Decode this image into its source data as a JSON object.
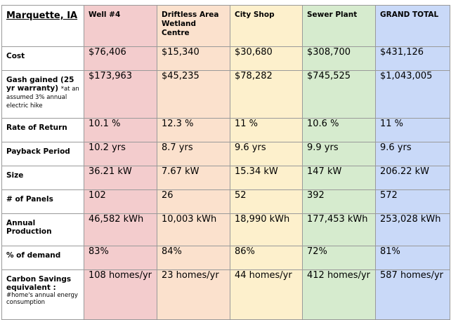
{
  "title": "Marquette, IA",
  "columns": [
    {
      "label": "Well #4",
      "color": "#f3cccd"
    },
    {
      "label": "Driftless Area Wetland Centre",
      "color": "#fbe1cd"
    },
    {
      "label": "City Shop",
      "color": "#fdf0cc"
    },
    {
      "label": "Sewer Plant",
      "color": "#d6ebce"
    },
    {
      "label": "GRAND TOTAL",
      "color": "#c9d9f8"
    }
  ],
  "rows": [
    {
      "label": "Cost",
      "note": "",
      "values": [
        "$76,406",
        "$15,340",
        "$30,680",
        "$308,700",
        "$431,126"
      ]
    },
    {
      "label": "Gash gained (25 yr warranty)",
      "note": "*at an assumed 3% annual electric hike",
      "values": [
        "$173,963",
        "$45,235",
        "$78,282",
        "$745,525",
        "$1,043,005"
      ]
    },
    {
      "label": "Rate of Return",
      "note": "",
      "values": [
        "10.1 %",
        "12.3 %",
        "11 %",
        "10.6 %",
        "11 %"
      ]
    },
    {
      "label": "Payback Period",
      "note": "",
      "values": [
        "10.2 yrs",
        "8.7 yrs",
        "9.6 yrs",
        "9.9 yrs",
        "9.6 yrs"
      ]
    },
    {
      "label": "Size",
      "note": "",
      "values": [
        "36.21 kW",
        "7.67 kW",
        "15.34 kW",
        "147 kW",
        "206.22 kW"
      ]
    },
    {
      "label": "# of Panels",
      "note": "",
      "values": [
        "102",
        "26",
        "52",
        "392",
        "572"
      ]
    },
    {
      "label": "Annual Production",
      "note": "",
      "values": [
        "46,582 kWh",
        "10,003 kWh",
        "18,990 kWh",
        "177,453 kWh",
        "253,028 kWh"
      ]
    },
    {
      "label": "% of demand",
      "note": "",
      "values": [
        "83%",
        "84%",
        "86%",
        "72%",
        "81%"
      ]
    },
    {
      "label": "Carbon Savings equivalent :",
      "note": "#home's annual energy consumption",
      "values": [
        "108 homes/yr",
        "23 homes/yr",
        "44 homes/yr",
        "412 homes/yr",
        "587 homes/yr"
      ]
    }
  ]
}
